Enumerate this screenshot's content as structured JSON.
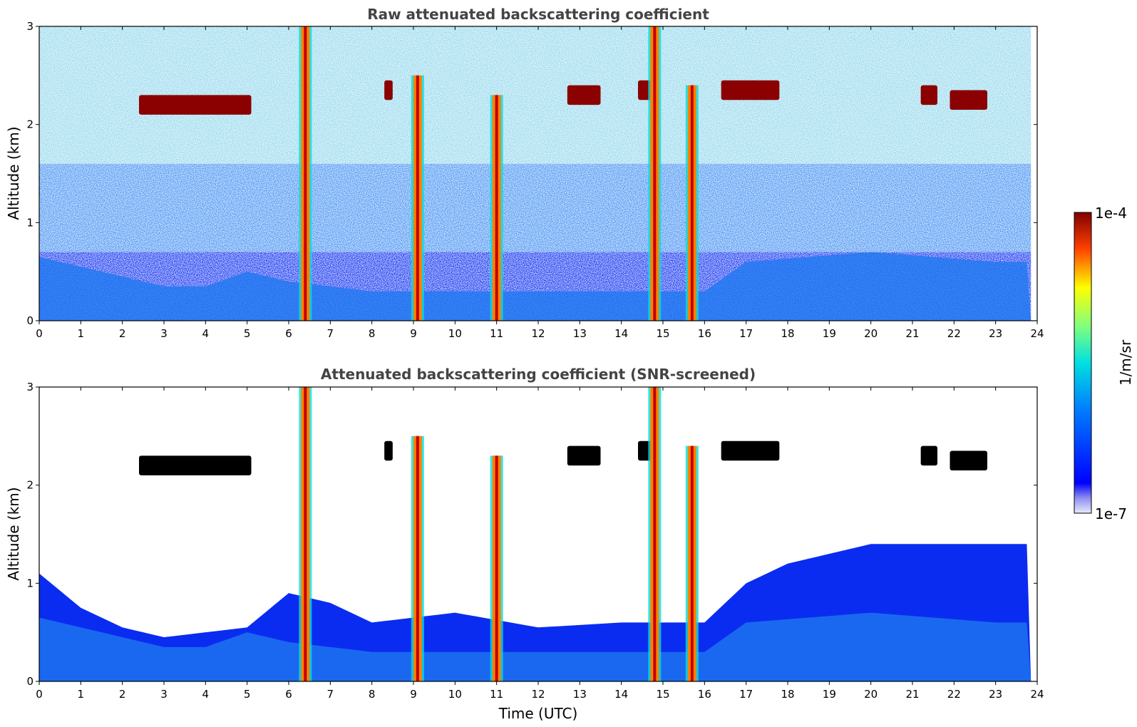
{
  "chart_data": [
    {
      "type": "heatmap",
      "title": "Raw attenuated backscattering coefficient",
      "xlabel": "",
      "ylabel": "Altitude (km)",
      "xlim": [
        0,
        24
      ],
      "ylim": [
        0,
        3
      ],
      "x_ticks": [
        "0",
        "1",
        "2",
        "3",
        "4",
        "5",
        "6",
        "7",
        "8",
        "9",
        "10",
        "11",
        "12",
        "13",
        "14",
        "15",
        "16",
        "17",
        "18",
        "19",
        "20",
        "21",
        "22",
        "23",
        "24"
      ],
      "y_ticks": [
        "0",
        "1",
        "2",
        "3"
      ],
      "features": {
        "noise_cutoff_km": 3.0,
        "boundary_layer_top_km": [
          [
            0,
            0.65
          ],
          [
            2,
            0.45
          ],
          [
            3,
            0.35
          ],
          [
            4,
            0.35
          ],
          [
            5,
            0.5
          ],
          [
            6,
            0.4
          ],
          [
            8,
            0.3
          ],
          [
            12,
            0.3
          ],
          [
            16,
            0.3
          ],
          [
            17,
            0.6
          ],
          [
            20,
            0.7
          ],
          [
            23,
            0.6
          ],
          [
            24,
            0.6
          ]
        ],
        "cloud_layers": [
          {
            "t0": 2.4,
            "t1": 5.1,
            "alt_km": 2.2
          },
          {
            "t0": 8.3,
            "t1": 8.5,
            "alt_km": 2.35
          },
          {
            "t0": 12.7,
            "t1": 13.5,
            "alt_km": 2.3
          },
          {
            "t0": 14.4,
            "t1": 14.8,
            "alt_km": 2.35
          },
          {
            "t0": 16.4,
            "t1": 17.8,
            "alt_km": 2.35
          },
          {
            "t0": 21.2,
            "t1": 21.6,
            "alt_km": 2.3
          },
          {
            "t0": 21.9,
            "t1": 22.8,
            "alt_km": 2.25
          }
        ],
        "precip_columns": [
          {
            "t": 6.4,
            "top_km": 3.0
          },
          {
            "t": 9.1,
            "top_km": 2.5
          },
          {
            "t": 11.0,
            "top_km": 2.3
          },
          {
            "t": 14.8,
            "top_km": 3.0
          },
          {
            "t": 15.7,
            "top_km": 2.4
          }
        ]
      }
    },
    {
      "type": "heatmap",
      "title": "Attenuated backscattering coefficient (SNR-screened)",
      "xlabel": "Time (UTC)",
      "ylabel": "Altitude (km)",
      "xlim": [
        0,
        24
      ],
      "ylim": [
        0,
        3
      ],
      "x_ticks": [
        "0",
        "1",
        "2",
        "3",
        "4",
        "5",
        "6",
        "7",
        "8",
        "9",
        "10",
        "11",
        "12",
        "13",
        "14",
        "15",
        "16",
        "17",
        "18",
        "19",
        "20",
        "21",
        "22",
        "23",
        "24"
      ],
      "y_ticks": [
        "0",
        "1",
        "2",
        "3"
      ],
      "features": {
        "screened_top_km": [
          [
            0,
            1.1
          ],
          [
            1,
            0.75
          ],
          [
            2,
            0.55
          ],
          [
            3,
            0.45
          ],
          [
            4,
            0.5
          ],
          [
            5,
            0.55
          ],
          [
            6,
            0.9
          ],
          [
            7,
            0.8
          ],
          [
            8,
            0.6
          ],
          [
            10,
            0.7
          ],
          [
            12,
            0.55
          ],
          [
            14,
            0.6
          ],
          [
            16,
            0.6
          ],
          [
            17,
            1.0
          ],
          [
            18,
            1.2
          ],
          [
            20,
            1.4
          ],
          [
            22,
            1.4
          ],
          [
            24,
            1.4
          ]
        ]
      }
    }
  ],
  "colorbar": {
    "max_label": "1e-4",
    "min_label": "1e-7",
    "label": "1/m/sr",
    "colormap": "jet"
  },
  "colors": {
    "title": "#444444",
    "background": "#ffffff",
    "low_signal": "#0a2cf0",
    "boundary_layer": "#1e78f0",
    "cloud": "#8b0000",
    "saturated": "#000000"
  }
}
